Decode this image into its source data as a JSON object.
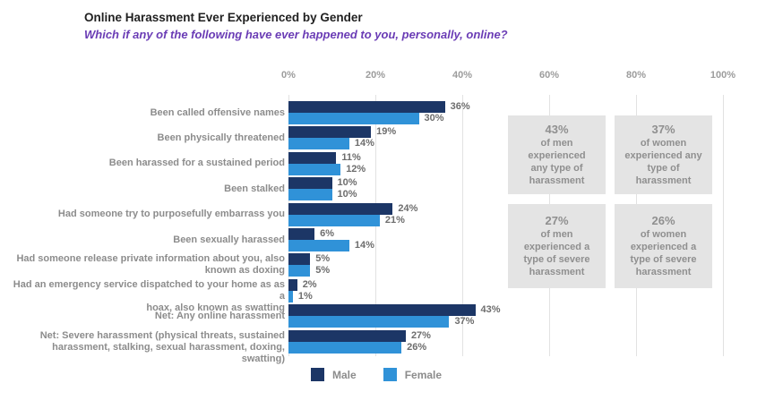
{
  "chart_data": {
    "type": "bar",
    "orientation": "horizontal",
    "title": "Online Harassment Ever Experienced by Gender",
    "subtitle": "Which if any of the following have ever happened to you, personally, online?",
    "x_axis": {
      "ticks": [
        "0%",
        "20%",
        "40%",
        "60%",
        "80%",
        "100%"
      ],
      "range": [
        0,
        100
      ],
      "grid": true
    },
    "value_suffix": "%",
    "categories": [
      "Been called offensive names",
      "Been physically threatened",
      "Been harassed for a sustained period",
      "Been stalked",
      "Had someone try to purposefully embarrass you",
      "Been sexually harassed",
      "Had someone release private information about you, also\nknown as doxing",
      "Had an emergency service dispatched to your home as as a\nhoax, also known as swatting",
      "Net: Any online harassment",
      "Net: Severe harassment (physical threats, sustained\nharassment, stalking, sexual harassment, doxing, swatting)"
    ],
    "series": [
      {
        "name": "Male",
        "color": "#1c3666",
        "values": [
          36,
          19,
          11,
          10,
          24,
          6,
          5,
          2,
          43,
          27
        ]
      },
      {
        "name": "Female",
        "color": "#3092d8",
        "values": [
          30,
          14,
          12,
          10,
          21,
          14,
          5,
          1,
          37,
          26
        ]
      }
    ],
    "legend_position": "bottom",
    "callouts": [
      {
        "value": "43%",
        "text": "of men experienced\nany type of\nharassment"
      },
      {
        "value": "37%",
        "text": "of women\nexperienced any\ntype of\nharassment"
      },
      {
        "value": "27%",
        "text": "of men\nexperienced a\ntype of severe\nharassment"
      },
      {
        "value": "26%",
        "text": "of women\nexperienced a\ntype of severe\nharassment"
      }
    ]
  },
  "colors": {
    "male_bar": "#1c3666",
    "female_bar": "#3092d8",
    "subtitle_text": "#6a3cb5",
    "grid_line": "#e2e2e2",
    "axis_text": "#9c9c9c",
    "category_text": "#8c8c8c",
    "value_text": "#6d6d6d",
    "callout_bg": "#e4e4e4",
    "callout_text": "#8f8f8f"
  }
}
